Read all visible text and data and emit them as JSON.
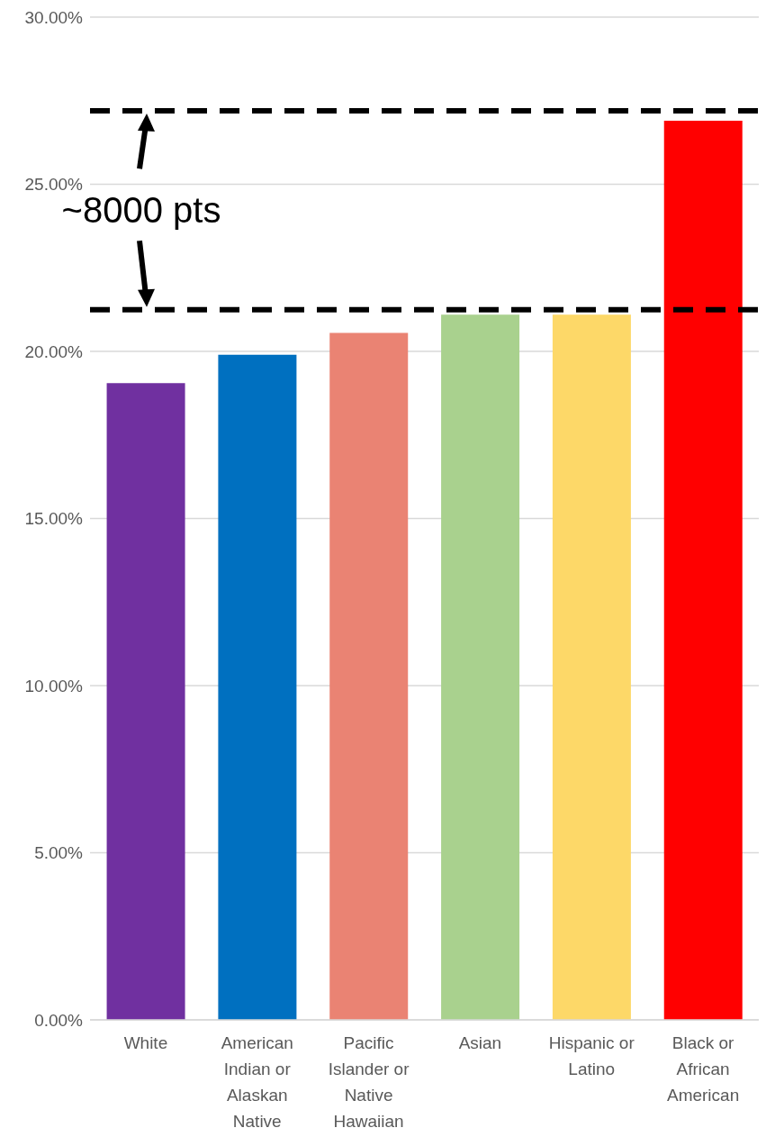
{
  "chart_data": {
    "type": "bar",
    "categories": [
      "White",
      "American Indian or Alaskan Native",
      "Pacific Islander or Native Hawaiian",
      "Asian",
      "Hispanic or Latino",
      "Black or African American"
    ],
    "values": [
      19.05,
      19.9,
      20.55,
      21.1,
      21.1,
      26.9
    ],
    "colors": [
      "#7030a0",
      "#0070c0",
      "#ea8373",
      "#a9d18e",
      "#fdd868",
      "#ff0000"
    ],
    "ylim": [
      0,
      30
    ],
    "yticks": [
      {
        "value": 0,
        "label": "0.00%"
      },
      {
        "value": 5,
        "label": "5.00%"
      },
      {
        "value": 10,
        "label": "10.00%"
      },
      {
        "value": 15,
        "label": "15.00%"
      },
      {
        "value": 20,
        "label": "20.00%"
      },
      {
        "value": 25,
        "label": "25.00%"
      },
      {
        "value": 30,
        "label": "30.00%"
      }
    ],
    "grid": "y",
    "ref_lines": [
      {
        "axis": "y",
        "value": 27.2,
        "color": "#000000",
        "line_style": "dashed"
      },
      {
        "axis": "y",
        "value": 21.25,
        "color": "#000000",
        "line_style": "dashed"
      }
    ],
    "annotations": [
      "~8000 pts"
    ]
  }
}
